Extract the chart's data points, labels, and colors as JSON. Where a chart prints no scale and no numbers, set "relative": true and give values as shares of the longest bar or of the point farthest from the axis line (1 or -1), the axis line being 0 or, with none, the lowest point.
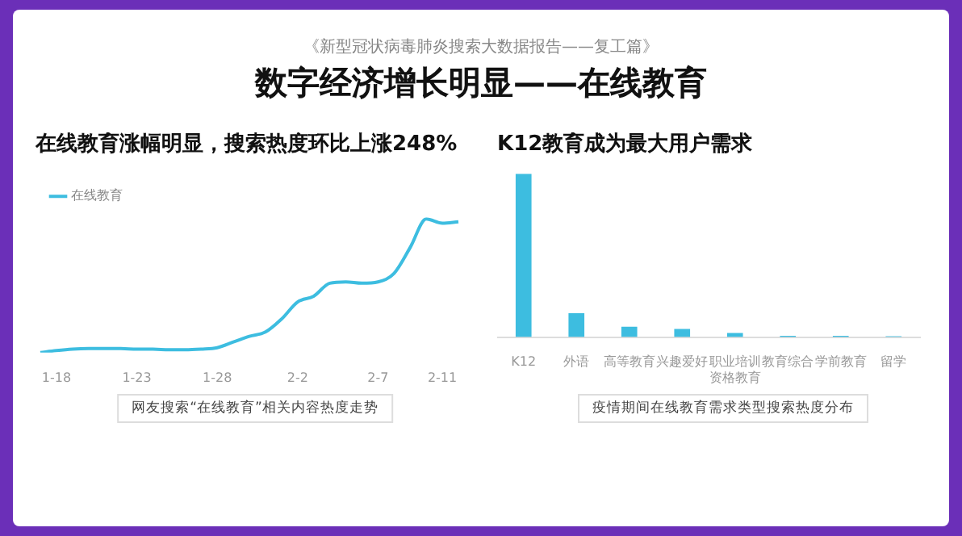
{
  "chart_data": [
    {
      "type": "other",
      "title": "数字经济增长明显——在线教育",
      "subtitle": "《新型冠状病毒肺炎搜索大数据报告——复工篇》"
    },
    {
      "type": "line",
      "title": "在线教育涨幅明显，搜索热度环比上涨248%",
      "relative": true,
      "legend": "top left",
      "marker": "none",
      "line_style": "solid",
      "categories": [
        null,
        "1-18",
        null,
        null,
        null,
        null,
        "1-23",
        null,
        null,
        null,
        null,
        "1-28",
        null,
        null,
        null,
        null,
        "2-2",
        null,
        null,
        null,
        null,
        "2-7",
        null,
        null,
        null,
        "2-11",
        null
      ],
      "series": [
        {
          "name": "在线教育",
          "color": "#3dbde0",
          "values": [
            0,
            0.015,
            0.026,
            0.03,
            0.03,
            0.03,
            0.026,
            0.026,
            0.021,
            0.021,
            0.026,
            0.037,
            0.079,
            0.122,
            0.154,
            0.251,
            0.379,
            0.422,
            0.519,
            0.529,
            0.519,
            0.529,
            0.593,
            0.786,
            1,
            0.968,
            0.978
          ]
        }
      ],
      "annotations": [
        "网友搜索“在线教育”相关内容热度走势"
      ]
    },
    {
      "type": "bar",
      "title": "K12教育成为最大用户需求",
      "relative": true,
      "categories": [
        "K12",
        "外语",
        "高等教育",
        "兴趣爱好",
        "职业培训资格教育",
        "教育综合",
        "学前教育",
        "留学"
      ],
      "series": [
        {
          "color": "#3dbde0",
          "values": [
            1,
            0.146,
            0.063,
            0.05,
            0.025,
            0.008,
            0.008,
            0.006
          ]
        }
      ],
      "annotations": [
        "疫情期间在线教育需求类型搜索热度分布"
      ]
    }
  ]
}
